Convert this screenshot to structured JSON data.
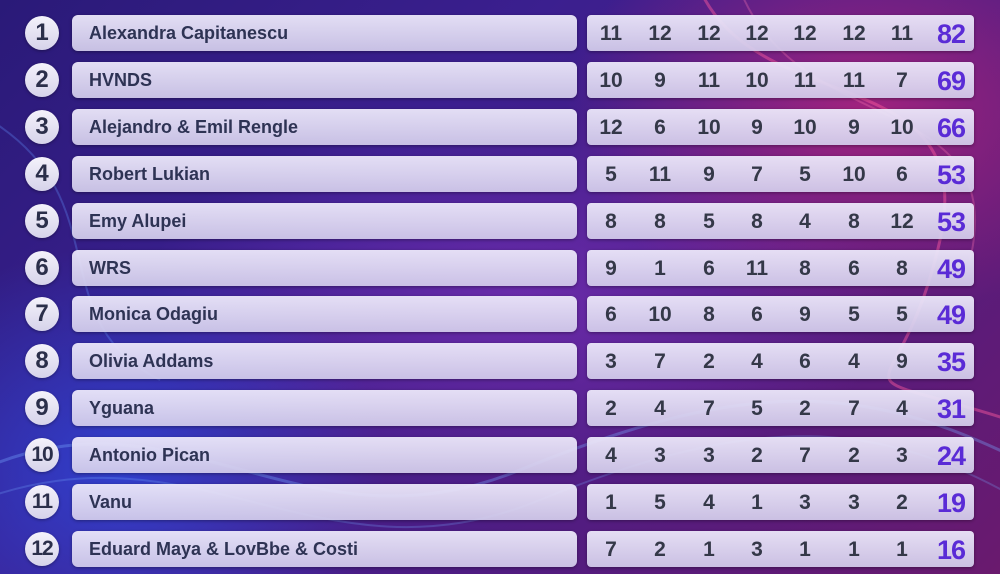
{
  "colors": {
    "total_text": "#5a2bd6",
    "score_text": "#343848",
    "name_text": "#2e3354",
    "bar_fill": "#e2ddf4",
    "background_start": "#2a1a78",
    "background_end": "#6a1a6e"
  },
  "scoreboard": {
    "rows": [
      {
        "rank": "1",
        "name": "Alexandra Capitanescu",
        "scores": [
          "11",
          "12",
          "12",
          "12",
          "12",
          "12",
          "11"
        ],
        "total": "82"
      },
      {
        "rank": "2",
        "name": "HVNDS",
        "scores": [
          "10",
          "9",
          "11",
          "10",
          "11",
          "11",
          "7"
        ],
        "total": "69"
      },
      {
        "rank": "3",
        "name": "Alejandro & Emil Rengle",
        "scores": [
          "12",
          "6",
          "10",
          "9",
          "10",
          "9",
          "10"
        ],
        "total": "66"
      },
      {
        "rank": "4",
        "name": "Robert Lukian",
        "scores": [
          "5",
          "11",
          "9",
          "7",
          "5",
          "10",
          "6"
        ],
        "total": "53"
      },
      {
        "rank": "5",
        "name": "Emy Alupei",
        "scores": [
          "8",
          "8",
          "5",
          "8",
          "4",
          "8",
          "12"
        ],
        "total": "53"
      },
      {
        "rank": "6",
        "name": "WRS",
        "scores": [
          "9",
          "1",
          "6",
          "11",
          "8",
          "6",
          "8"
        ],
        "total": "49"
      },
      {
        "rank": "7",
        "name": "Monica Odagiu",
        "scores": [
          "6",
          "10",
          "8",
          "6",
          "9",
          "5",
          "5"
        ],
        "total": "49"
      },
      {
        "rank": "8",
        "name": "Olivia Addams",
        "scores": [
          "3",
          "7",
          "2",
          "4",
          "6",
          "4",
          "9"
        ],
        "total": "35"
      },
      {
        "rank": "9",
        "name": "Yguana",
        "scores": [
          "2",
          "4",
          "7",
          "5",
          "2",
          "7",
          "4"
        ],
        "total": "31"
      },
      {
        "rank": "10",
        "name": "Antonio Pican",
        "scores": [
          "4",
          "3",
          "3",
          "2",
          "7",
          "2",
          "3"
        ],
        "total": "24"
      },
      {
        "rank": "11",
        "name": "Vanu",
        "scores": [
          "1",
          "5",
          "4",
          "1",
          "3",
          "3",
          "2"
        ],
        "total": "19"
      },
      {
        "rank": "12",
        "name": "Eduard Maya & LovBbe & Costi",
        "scores": [
          "7",
          "2",
          "1",
          "3",
          "1",
          "1",
          "1"
        ],
        "total": "16"
      }
    ]
  }
}
